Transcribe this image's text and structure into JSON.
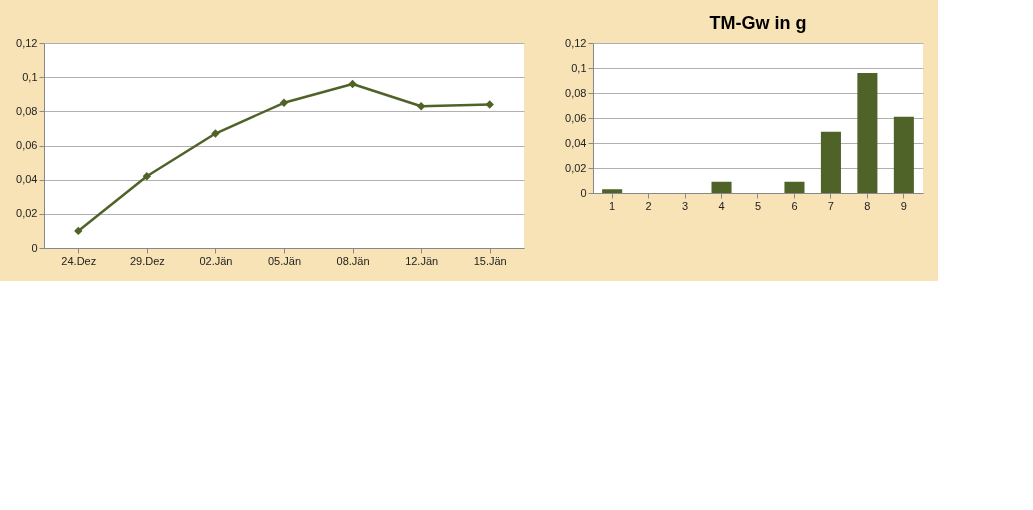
{
  "chart_data": [
    {
      "type": "line",
      "categories": [
        "24.Dez",
        "29.Dez",
        "02.Jän",
        "05.Jän",
        "08.Jän",
        "12.Jän",
        "15.Jän"
      ],
      "series": [
        {
          "color": "#4f6228",
          "values": [
            0.01,
            0.042,
            0.067,
            0.085,
            0.096,
            0.083,
            0.084
          ]
        }
      ],
      "ylim": [
        0,
        0.12
      ],
      "yticks": [
        {
          "value": 0,
          "label": "0"
        },
        {
          "value": 0.02,
          "label": "0,02"
        },
        {
          "value": 0.04,
          "label": "0,04"
        },
        {
          "value": 0.06,
          "label": "0,06"
        },
        {
          "value": 0.08,
          "label": "0,08"
        },
        {
          "value": 0.1,
          "label": "0,1"
        },
        {
          "value": 0.12,
          "label": "0,12"
        }
      ],
      "grid": "y",
      "marker": "diamond"
    },
    {
      "type": "bar",
      "title": "TM-Gw in g",
      "categories": [
        "1",
        "2",
        "3",
        "4",
        "5",
        "6",
        "7",
        "8",
        "9"
      ],
      "series": [
        {
          "color": "#4f6228",
          "values": [
            0.003,
            null,
            null,
            0.009,
            null,
            0.009,
            0.049,
            0.096,
            0.061
          ]
        }
      ],
      "ylim": [
        0,
        0.12
      ],
      "yticks": [
        {
          "value": 0,
          "label": "0"
        },
        {
          "value": 0.02,
          "label": "0,02"
        },
        {
          "value": 0.04,
          "label": "0,04"
        },
        {
          "value": 0.06,
          "label": "0,06"
        },
        {
          "value": 0.08,
          "label": "0,08"
        },
        {
          "value": 0.1,
          "label": "0,1"
        },
        {
          "value": 0.12,
          "label": "0,12"
        }
      ],
      "grid": "y"
    }
  ]
}
